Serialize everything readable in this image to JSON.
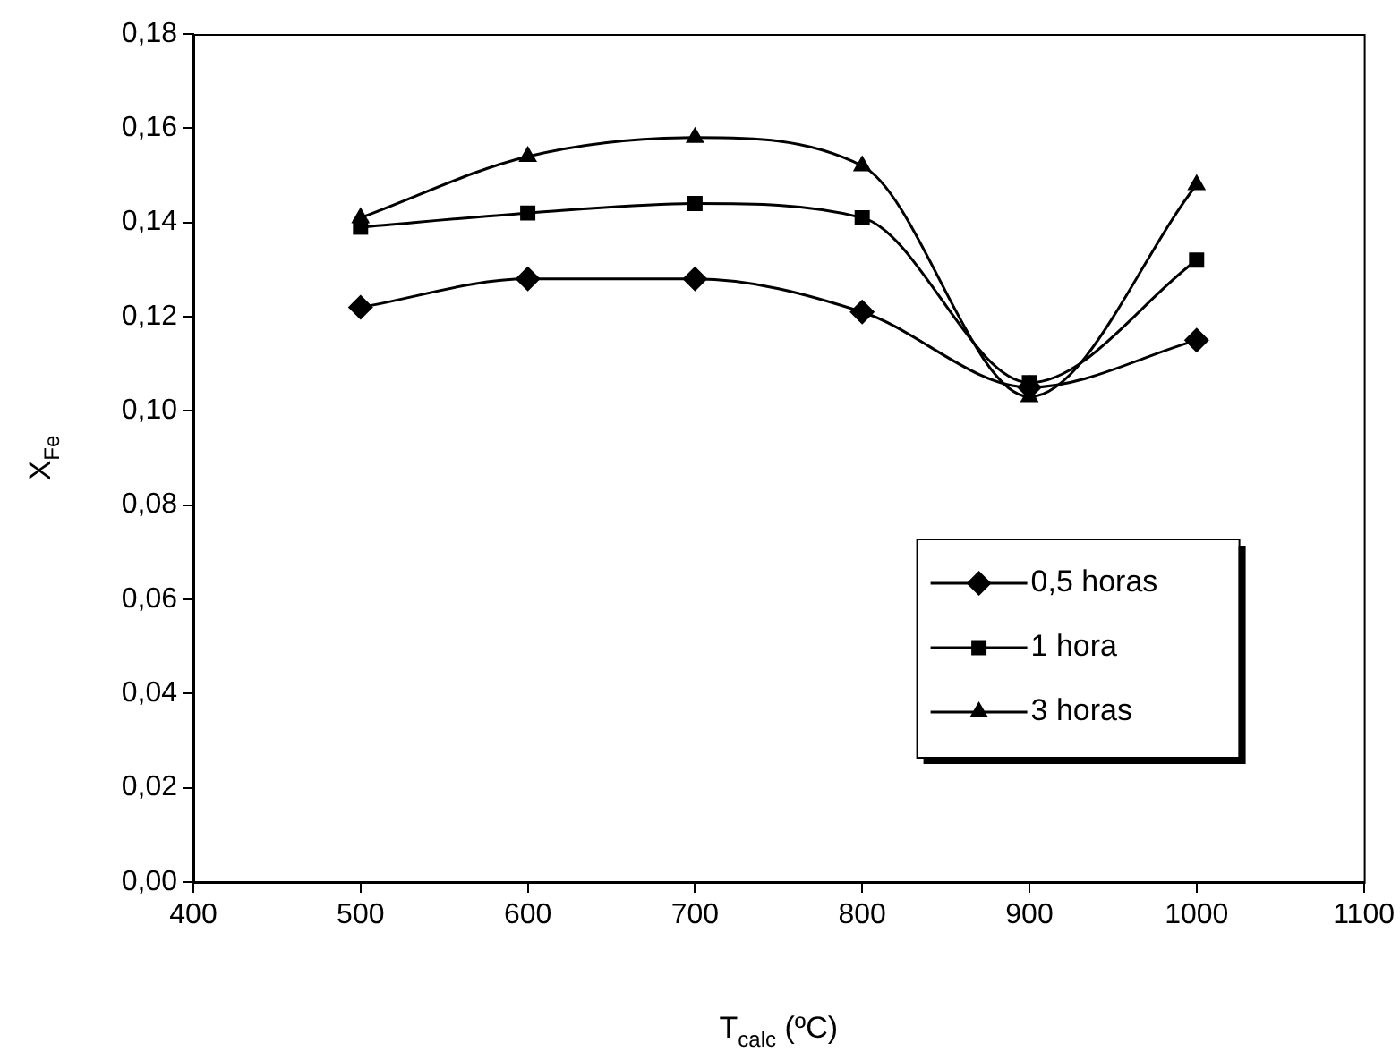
{
  "chart_data": {
    "type": "line",
    "xlabel": "T$_{calc}$ (ºC)",
    "ylabel": "X$_{Fe}$",
    "x": [
      500,
      600,
      700,
      800,
      900,
      1000
    ],
    "series": [
      {
        "name": "0,5 horas",
        "color": "#000000",
        "marker": "diamond",
        "values": [
          0.122,
          0.128,
          0.128,
          0.121,
          0.105,
          0.115
        ]
      },
      {
        "name": "1 hora",
        "color": "#000000",
        "marker": "square",
        "values": [
          0.139,
          0.142,
          0.144,
          0.141,
          0.106,
          0.132
        ]
      },
      {
        "name": "3 horas",
        "color": "#000000",
        "marker": "triangle",
        "values": [
          0.141,
          0.154,
          0.158,
          0.152,
          0.103,
          0.148
        ]
      }
    ],
    "xlim": [
      400,
      1100
    ],
    "xticks": [
      400,
      500,
      600,
      700,
      800,
      900,
      1000,
      1100
    ],
    "ylim": [
      0,
      0.18
    ],
    "yticks": [
      {
        "value": 0,
        "label": "0,00"
      },
      {
        "value": 0.02,
        "label": "0,02"
      },
      {
        "value": 0.04,
        "label": "0,04"
      },
      {
        "value": 0.06,
        "label": "0,06"
      },
      {
        "value": 0.08,
        "label": "0,08"
      },
      {
        "value": 0.1,
        "label": "0,10"
      },
      {
        "value": 0.12,
        "label": "0,12"
      },
      {
        "value": 0.14,
        "label": "0,14"
      },
      {
        "value": 0.16,
        "label": "0,16"
      },
      {
        "value": 0.18,
        "label": "0,18"
      }
    ],
    "grid": false,
    "legend": "bottom right",
    "line_style": "solid"
  }
}
